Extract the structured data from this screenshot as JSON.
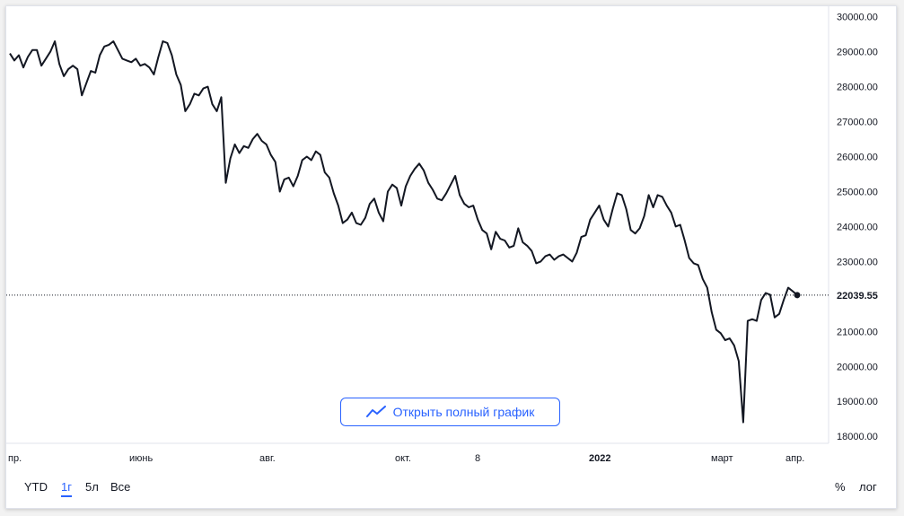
{
  "chart_data": {
    "type": "line",
    "title": "",
    "xlabel": "",
    "ylabel": "",
    "ylim": [
      17800,
      30300
    ],
    "y_ticks": [
      "30000.00",
      "29000.00",
      "28000.00",
      "27000.00",
      "26000.00",
      "25000.00",
      "24000.00",
      "23000.00",
      "22000.00",
      "21000.00",
      "20000.00",
      "19000.00",
      "18000.00"
    ],
    "x_ticks": [
      {
        "label": "пр.",
        "bold": false
      },
      {
        "label": "июнь",
        "bold": false
      },
      {
        "label": "авг.",
        "bold": false
      },
      {
        "label": "окт.",
        "bold": false
      },
      {
        "label": "8",
        "bold": false
      },
      {
        "label": "2022",
        "bold": true
      },
      {
        "label": "март",
        "bold": false
      },
      {
        "label": "апр.",
        "bold": false
      }
    ],
    "last_value": 22039.55,
    "last_value_label": "22039.55",
    "line_color": "#131722",
    "grid": false,
    "series": [
      {
        "values": [
          28950,
          28750,
          28900,
          28550,
          28850,
          29050,
          29050,
          28600,
          28800,
          29000,
          29300,
          28650,
          28300,
          28500,
          28600,
          28500,
          27750,
          28100,
          28450,
          28400,
          28900,
          29150,
          29200,
          29300,
          29050,
          28800,
          28750,
          28700,
          28800,
          28600,
          28650,
          28550,
          28350,
          28850,
          29300,
          29250,
          28900,
          28350,
          28050,
          27300,
          27500,
          27800,
          27750,
          27950,
          28000,
          27500,
          27300,
          27700,
          25250,
          25950,
          26350,
          26100,
          26300,
          26250,
          26500,
          26650,
          26450,
          26350,
          26050,
          25850,
          25000,
          25350,
          25400,
          25150,
          25450,
          25900,
          26000,
          25900,
          26150,
          26050,
          25550,
          25400,
          24950,
          24600,
          24100,
          24200,
          24400,
          24100,
          24050,
          24250,
          24650,
          24800,
          24400,
          24150,
          25000,
          25200,
          25100,
          24600,
          25150,
          25450,
          25650,
          25800,
          25600,
          25250,
          25050,
          24800,
          24750,
          24950,
          25200,
          25450,
          24900,
          24650,
          24550,
          24600,
          24200,
          23900,
          23800,
          23350,
          23850,
          23650,
          23600,
          23400,
          23450,
          23950,
          23550,
          23450,
          23300,
          22950,
          23000,
          23150,
          23200,
          23050,
          23150,
          23200,
          23100,
          23000,
          23250,
          23700,
          23750,
          24200,
          24400,
          24600,
          24200,
          24000,
          24500,
          24950,
          24900,
          24500,
          23900,
          23800,
          23950,
          24300,
          24900,
          24550,
          24900,
          24850,
          24600,
          24400,
          24000,
          24050,
          23600,
          23100,
          22950,
          22900,
          22500,
          22250,
          21550,
          21050,
          20950,
          20750,
          20800,
          20600,
          20150,
          18400,
          21300,
          21350,
          21300,
          21900,
          22100,
          22050,
          21400,
          21500,
          21900,
          22250,
          22150,
          22039.55
        ]
      }
    ]
  },
  "button": {
    "label": "Открыть полный график"
  },
  "ranges": [
    {
      "label": "YTD",
      "active": false
    },
    {
      "label": "1г",
      "active": true
    },
    {
      "label": "5л",
      "active": false
    },
    {
      "label": "Все",
      "active": false
    }
  ],
  "scale": {
    "percent": "%",
    "log": "лог"
  }
}
